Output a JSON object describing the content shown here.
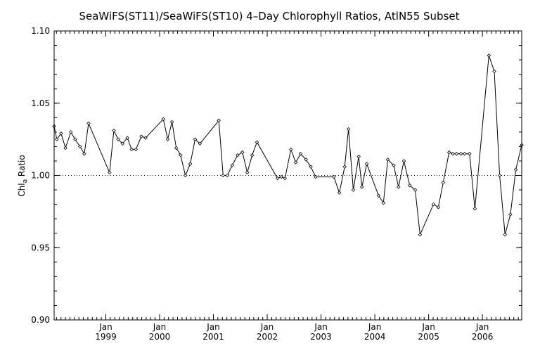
{
  "chart_data": {
    "type": "line",
    "title": "SeaWiFS(ST11)/SeaWiFS(ST10) 4–Day Chlorophyll Ratios, AtlN55 Subset",
    "xlabel": "",
    "ylabel": "Chl",
    "ylabel_sub": "a",
    "ylabel_suffix": " Ratio",
    "ylim": [
      0.9,
      1.1
    ],
    "yticks": [
      "0.90",
      "0.95",
      "1.00",
      "1.05",
      "1.10"
    ],
    "reference_line": 1.0,
    "xlim": [
      1998.04,
      2006.73
    ],
    "xticks": [
      {
        "month": "Jan",
        "year": "1999"
      },
      {
        "month": "Jan",
        "year": "2000"
      },
      {
        "month": "Jan",
        "year": "2001"
      },
      {
        "month": "Jan",
        "year": "2002"
      },
      {
        "month": "Jan",
        "year": "2003"
      },
      {
        "month": "Jan",
        "year": "2004"
      },
      {
        "month": "Jan",
        "year": "2005"
      },
      {
        "month": "Jan",
        "year": "2006"
      }
    ],
    "series": [
      {
        "x": [
          1998.04,
          1998.09,
          1998.17,
          1998.25,
          1998.35,
          1998.43,
          1998.52,
          1998.6,
          1998.68,
          1999.07,
          1999.15,
          1999.23,
          1999.31,
          1999.4,
          1999.48,
          1999.56,
          1999.66,
          1999.74,
          2000.07,
          2000.15,
          2000.23,
          2000.31,
          2000.39,
          2000.48,
          2000.57,
          2000.66,
          2000.75,
          2001.1,
          2001.18,
          2001.26,
          2001.35,
          2001.45,
          2001.54,
          2001.63,
          2001.72,
          2001.81,
          2002.19,
          2002.26,
          2002.33,
          2002.44,
          2002.53,
          2002.62,
          2002.72,
          2002.81,
          2002.9,
          2003.24,
          2003.34,
          2003.44,
          2003.51,
          2003.6,
          2003.7,
          2003.76,
          2003.85,
          2004.07,
          2004.16,
          2004.24,
          2004.35,
          2004.44,
          2004.54,
          2004.65,
          2004.75,
          2004.84,
          2005.09,
          2005.18,
          2005.27,
          2005.38,
          2005.45,
          2005.52,
          2005.6,
          2005.67,
          2005.76,
          2005.86,
          2006.12,
          2006.22,
          2006.32,
          2006.42,
          2006.52,
          2006.62,
          2006.73
        ],
        "y": [
          1.034,
          1.025,
          1.029,
          1.019,
          1.03,
          1.025,
          1.02,
          1.015,
          1.036,
          1.002,
          1.031,
          1.025,
          1.022,
          1.026,
          1.018,
          1.018,
          1.027,
          1.026,
          1.039,
          1.025,
          1.037,
          1.019,
          1.014,
          1.0,
          1.008,
          1.025,
          1.022,
          1.038,
          1.0,
          1.0,
          1.007,
          1.014,
          1.016,
          1.002,
          1.014,
          1.023,
          0.998,
          0.999,
          0.998,
          1.018,
          1.009,
          1.015,
          1.011,
          1.006,
          0.999,
          0.999,
          0.988,
          1.006,
          1.032,
          0.99,
          1.013,
          0.992,
          1.008,
          0.986,
          0.981,
          1.011,
          1.007,
          0.992,
          1.01,
          0.993,
          0.99,
          0.959,
          0.98,
          0.978,
          0.995,
          1.016,
          1.015,
          1.015,
          1.015,
          1.015,
          1.015,
          0.977,
          1.083,
          1.072,
          1.0,
          0.959,
          0.973,
          1.004,
          1.021
        ]
      }
    ]
  }
}
